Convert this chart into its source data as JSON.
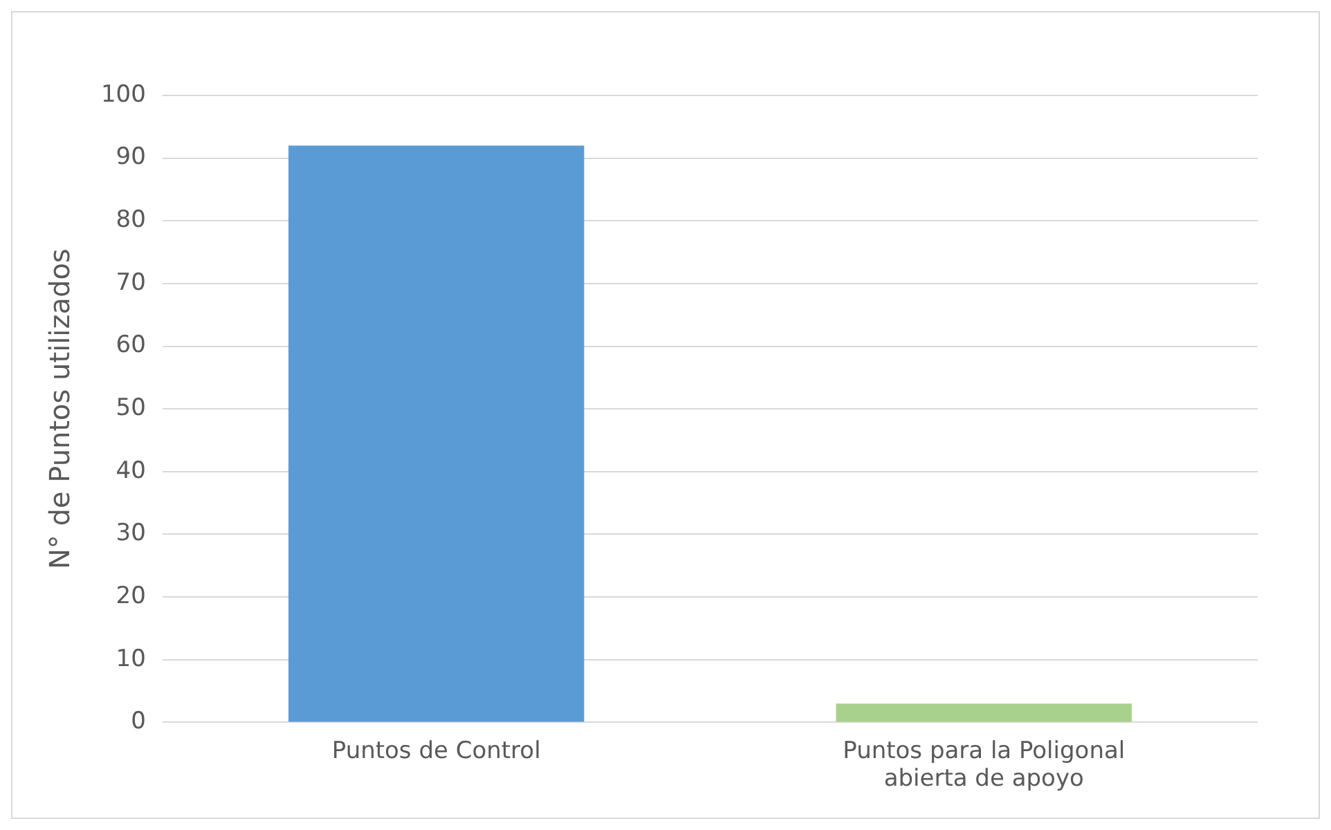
{
  "chart_data": {
    "type": "bar",
    "ylabel": "N° de Puntos utilizados",
    "categories": [
      "Puntos de Control",
      "Puntos para la Poligonal abierta de apoyo"
    ],
    "values": [
      92,
      3
    ],
    "colors": [
      "#5b9bd5",
      "#a9d18e"
    ],
    "ylim": [
      0,
      100
    ],
    "yticks": [
      0,
      10,
      20,
      30,
      40,
      50,
      60,
      70,
      80,
      90,
      100
    ],
    "grid": "y"
  }
}
